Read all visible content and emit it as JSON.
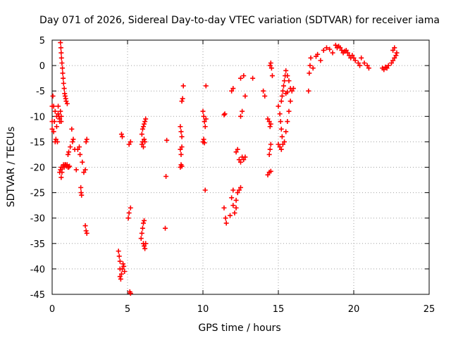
{
  "chart_data": {
    "type": "scatter",
    "title": "Day 071 of 2026, Sidereal Day-to-day VTEC variation (SDTVAR) for receiver iama",
    "xlabel": "GPS time / hours",
    "ylabel": "SDTVAR / TECUs",
    "xlim": [
      0,
      25
    ],
    "ylim": [
      -45,
      5
    ],
    "xticks": [
      0,
      5,
      10,
      15,
      20,
      25
    ],
    "yticks": [
      -45,
      -40,
      -35,
      -30,
      -25,
      -20,
      -15,
      -10,
      -5,
      0,
      5
    ],
    "grid": true,
    "marker": "+",
    "color": "#ff0000",
    "series": [
      {
        "name": "SDTVAR",
        "points": [
          [
            0.0,
            -8
          ],
          [
            0.0,
            -11
          ],
          [
            0.0,
            -12.5
          ],
          [
            0.05,
            -6
          ],
          [
            0.1,
            -8
          ],
          [
            0.1,
            -13
          ],
          [
            0.15,
            -11
          ],
          [
            0.2,
            -9
          ],
          [
            0.2,
            -15
          ],
          [
            0.25,
            -14.5
          ],
          [
            0.3,
            -10
          ],
          [
            0.3,
            -12
          ],
          [
            0.35,
            -15
          ],
          [
            0.4,
            -8
          ],
          [
            0.4,
            -9.5
          ],
          [
            0.45,
            -10
          ],
          [
            0.5,
            -10.5
          ],
          [
            0.5,
            -11
          ],
          [
            0.55,
            -9
          ],
          [
            0.6,
            -10
          ],
          [
            0.6,
            -11
          ],
          [
            0.5,
            -21
          ],
          [
            0.55,
            -20.5
          ],
          [
            0.6,
            -20
          ],
          [
            0.6,
            -22
          ],
          [
            0.65,
            -21
          ],
          [
            0.7,
            -20
          ],
          [
            0.75,
            -19.5
          ],
          [
            0.8,
            -20
          ],
          [
            0.85,
            -19.5
          ],
          [
            0.9,
            -19.5
          ],
          [
            0.95,
            -19.8
          ],
          [
            1.0,
            -19.5
          ],
          [
            1.05,
            -20
          ],
          [
            1.1,
            -20
          ],
          [
            1.15,
            -19.8
          ],
          [
            0.55,
            4.5
          ],
          [
            0.58,
            3.5
          ],
          [
            0.6,
            2.5
          ],
          [
            0.62,
            1.5
          ],
          [
            0.65,
            0.5
          ],
          [
            0.68,
            -0.5
          ],
          [
            0.7,
            -1.5
          ],
          [
            0.73,
            -2.5
          ],
          [
            0.76,
            -3.5
          ],
          [
            0.8,
            -4.5
          ],
          [
            0.83,
            -5.5
          ],
          [
            0.86,
            -6
          ],
          [
            0.9,
            -6.5
          ],
          [
            0.93,
            -7
          ],
          [
            1.0,
            -7.5
          ],
          [
            1.05,
            -17.5
          ],
          [
            1.1,
            -17
          ],
          [
            1.2,
            -16
          ],
          [
            1.3,
            -12.5
          ],
          [
            1.35,
            -15
          ],
          [
            1.4,
            -14.5
          ],
          [
            1.5,
            -16.5
          ],
          [
            1.6,
            -20.5
          ],
          [
            1.7,
            -16.5
          ],
          [
            1.8,
            -16
          ],
          [
            1.85,
            -17.5
          ],
          [
            1.9,
            -24
          ],
          [
            1.92,
            -25
          ],
          [
            1.95,
            -25.5
          ],
          [
            2.0,
            -19
          ],
          [
            2.1,
            -21
          ],
          [
            2.2,
            -20.5
          ],
          [
            2.25,
            -15
          ],
          [
            2.3,
            -14.5
          ],
          [
            2.2,
            -31.5
          ],
          [
            2.25,
            -32.5
          ],
          [
            2.3,
            -33
          ],
          [
            4.4,
            -36.5
          ],
          [
            4.45,
            -37.5
          ],
          [
            4.5,
            -38.5
          ],
          [
            4.5,
            -40
          ],
          [
            4.5,
            -41.5
          ],
          [
            4.55,
            -42
          ],
          [
            4.6,
            -41
          ],
          [
            4.65,
            -40
          ],
          [
            4.7,
            -39
          ],
          [
            4.75,
            -39.5
          ],
          [
            4.8,
            -40.5
          ],
          [
            4.6,
            -13.5
          ],
          [
            4.65,
            -14
          ],
          [
            5.1,
            -15.5
          ],
          [
            5.2,
            -15
          ],
          [
            5.05,
            -30
          ],
          [
            5.1,
            -29
          ],
          [
            5.2,
            -28
          ],
          [
            5.15,
            -44.5
          ],
          [
            5.2,
            -44.8
          ],
          [
            5.9,
            -34
          ],
          [
            5.95,
            -33
          ],
          [
            6.0,
            -32
          ],
          [
            6.05,
            -31
          ],
          [
            6.1,
            -30.5
          ],
          [
            6.05,
            -35
          ],
          [
            6.1,
            -35.5
          ],
          [
            6.15,
            -36
          ],
          [
            6.2,
            -35
          ],
          [
            5.95,
            -15.5
          ],
          [
            6.0,
            -15
          ],
          [
            6.05,
            -16
          ],
          [
            6.1,
            -14.5
          ],
          [
            6.15,
            -15
          ],
          [
            5.95,
            -13.5
          ],
          [
            6.0,
            -12.5
          ],
          [
            6.05,
            -12
          ],
          [
            6.1,
            -11.5
          ],
          [
            6.15,
            -11
          ],
          [
            6.2,
            -10.5
          ],
          [
            7.5,
            -32
          ],
          [
            7.55,
            -21.8
          ],
          [
            7.6,
            -14.7
          ],
          [
            8.5,
            -12
          ],
          [
            8.55,
            -13
          ],
          [
            8.6,
            -14
          ],
          [
            8.5,
            -16.5
          ],
          [
            8.55,
            -17.5
          ],
          [
            8.6,
            -16
          ],
          [
            8.5,
            -20
          ],
          [
            8.55,
            -19.5
          ],
          [
            8.6,
            -19.8
          ],
          [
            8.6,
            -7
          ],
          [
            8.65,
            -6.5
          ],
          [
            8.7,
            -4
          ],
          [
            10.0,
            -9
          ],
          [
            10.05,
            -10
          ],
          [
            10.1,
            -11
          ],
          [
            10.15,
            -12
          ],
          [
            10.2,
            -10.5
          ],
          [
            10.0,
            -15
          ],
          [
            10.05,
            -14.5
          ],
          [
            10.1,
            -15.2
          ],
          [
            10.15,
            -24.5
          ],
          [
            10.2,
            -4
          ],
          [
            11.4,
            -9.7
          ],
          [
            11.45,
            -9.5
          ],
          [
            11.4,
            -28
          ],
          [
            11.5,
            -30
          ],
          [
            11.55,
            -31
          ],
          [
            11.8,
            -29.5
          ],
          [
            11.9,
            -26
          ],
          [
            12.0,
            -27.5
          ],
          [
            12.1,
            -29
          ],
          [
            12.0,
            -24.5
          ],
          [
            12.2,
            -28
          ],
          [
            12.3,
            -25
          ],
          [
            12.2,
            -26.5
          ],
          [
            12.4,
            -24.5
          ],
          [
            12.5,
            -24
          ],
          [
            11.9,
            -5
          ],
          [
            12.0,
            -4.5
          ],
          [
            12.2,
            -17
          ],
          [
            12.3,
            -16.5
          ],
          [
            12.4,
            -18.5
          ],
          [
            12.5,
            -19
          ],
          [
            12.6,
            -18
          ],
          [
            12.7,
            -18.5
          ],
          [
            12.8,
            -18
          ],
          [
            12.5,
            -10
          ],
          [
            12.6,
            -9
          ],
          [
            12.5,
            -2.5
          ],
          [
            12.7,
            -2
          ],
          [
            12.8,
            -6
          ],
          [
            13.3,
            -2.5
          ],
          [
            14.0,
            -5
          ],
          [
            14.1,
            -6
          ],
          [
            14.3,
            -10.5
          ],
          [
            14.4,
            -11
          ],
          [
            14.45,
            -12
          ],
          [
            14.5,
            -11.5
          ],
          [
            14.3,
            -21.5
          ],
          [
            14.4,
            -21
          ],
          [
            14.5,
            -20.8
          ],
          [
            14.4,
            -17.5
          ],
          [
            14.45,
            -16.5
          ],
          [
            14.5,
            -15.5
          ],
          [
            14.45,
            0
          ],
          [
            14.5,
            0.5
          ],
          [
            14.55,
            -0.5
          ],
          [
            14.6,
            -2
          ],
          [
            15.0,
            -8
          ],
          [
            15.1,
            -9.5
          ],
          [
            15.15,
            -11
          ],
          [
            15.2,
            -12.5
          ],
          [
            15.25,
            -14
          ],
          [
            15.0,
            -15.5
          ],
          [
            15.1,
            -16
          ],
          [
            15.2,
            -16.5
          ],
          [
            15.3,
            -15.5
          ],
          [
            15.4,
            -15
          ],
          [
            15.5,
            -13
          ],
          [
            15.6,
            -11
          ],
          [
            15.7,
            -9
          ],
          [
            15.8,
            -7
          ],
          [
            15.2,
            -7
          ],
          [
            15.25,
            -6
          ],
          [
            15.3,
            -5
          ],
          [
            15.35,
            -4
          ],
          [
            15.4,
            -3
          ],
          [
            15.45,
            -2
          ],
          [
            15.5,
            -1
          ],
          [
            15.6,
            -2
          ],
          [
            15.7,
            -3
          ],
          [
            15.8,
            -4.5
          ],
          [
            15.9,
            -5
          ],
          [
            16.0,
            -4.5
          ],
          [
            15.5,
            -5.5
          ],
          [
            15.6,
            -5.2
          ],
          [
            17.0,
            -5
          ],
          [
            17.05,
            -1.5
          ],
          [
            17.1,
            0
          ],
          [
            17.15,
            1.5
          ],
          [
            17.3,
            -0.5
          ],
          [
            17.5,
            1.8
          ],
          [
            17.6,
            2.2
          ],
          [
            17.8,
            1
          ],
          [
            18.0,
            3
          ],
          [
            18.2,
            3.5
          ],
          [
            18.4,
            3.2
          ],
          [
            18.6,
            2.5
          ],
          [
            18.8,
            4
          ],
          [
            18.9,
            3.5
          ],
          [
            19.0,
            3.8
          ],
          [
            19.1,
            3.5
          ],
          [
            19.2,
            3
          ],
          [
            19.3,
            2.5
          ],
          [
            19.4,
            2.8
          ],
          [
            19.5,
            3
          ],
          [
            19.6,
            2.5
          ],
          [
            19.7,
            2
          ],
          [
            19.8,
            1.5
          ],
          [
            19.9,
            2
          ],
          [
            20.0,
            1.5
          ],
          [
            20.1,
            1
          ],
          [
            20.3,
            0.5
          ],
          [
            20.4,
            0
          ],
          [
            20.5,
            1.5
          ],
          [
            20.7,
            0.5
          ],
          [
            20.9,
            0
          ],
          [
            21.0,
            -0.5
          ],
          [
            21.9,
            -0.5
          ],
          [
            22.0,
            -0.8
          ],
          [
            22.1,
            -0.3
          ],
          [
            22.2,
            -0.5
          ],
          [
            22.3,
            0
          ],
          [
            22.5,
            0.5
          ],
          [
            22.6,
            1
          ],
          [
            22.7,
            1.5
          ],
          [
            22.8,
            2
          ],
          [
            22.85,
            2.5
          ],
          [
            22.6,
            3
          ],
          [
            22.7,
            3.5
          ]
        ]
      }
    ]
  }
}
